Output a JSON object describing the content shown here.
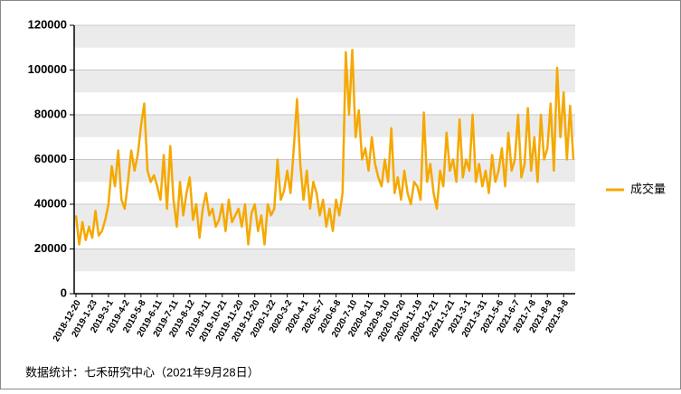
{
  "chart_data": {
    "type": "line",
    "categories": [
      "2018-12-20",
      null,
      null,
      null,
      null,
      "2019-1-23",
      null,
      null,
      null,
      null,
      "2019-3-1",
      null,
      null,
      null,
      null,
      "2019-4-2",
      null,
      null,
      null,
      null,
      "2019-5-8",
      null,
      null,
      null,
      null,
      "2019-6-11",
      null,
      null,
      null,
      null,
      "2019-7-11",
      null,
      null,
      null,
      null,
      "2019-8-12",
      null,
      null,
      null,
      null,
      "2019-9-11",
      null,
      null,
      null,
      null,
      "2019-10-21",
      null,
      null,
      null,
      null,
      "2019-11-20",
      null,
      null,
      null,
      null,
      "2019-12-20",
      null,
      null,
      null,
      null,
      "2020-1-22",
      null,
      null,
      null,
      null,
      "2020-3-2",
      null,
      null,
      null,
      null,
      "2020-4-1",
      null,
      null,
      null,
      null,
      "2020-5-7",
      null,
      null,
      null,
      null,
      "2020-6-8",
      null,
      null,
      null,
      null,
      "2020-7-10",
      null,
      null,
      null,
      null,
      "2020-8-11",
      null,
      null,
      null,
      null,
      "2020-9-10",
      null,
      null,
      null,
      null,
      "2020-10-20",
      null,
      null,
      null,
      null,
      "2020-11-19",
      null,
      null,
      null,
      null,
      "2020-12-21",
      null,
      null,
      null,
      null,
      "2021-1-21",
      null,
      null,
      null,
      null,
      "2021-3-1",
      null,
      null,
      null,
      null,
      "2021-3-31",
      null,
      null,
      null,
      null,
      "2021-5-6",
      null,
      null,
      null,
      null,
      "2021-6-7",
      null,
      null,
      null,
      null,
      "2021-7-8",
      null,
      null,
      null,
      null,
      "2021-8-9",
      null,
      null,
      null,
      null,
      "2021-9-8",
      null,
      null,
      null
    ],
    "series": [
      {
        "name": "成交量",
        "color": "#f5a800",
        "values": [
          35000,
          22000,
          32000,
          24000,
          30000,
          25000,
          37000,
          26000,
          28000,
          33000,
          40000,
          57000,
          48000,
          64000,
          42000,
          38000,
          50000,
          64000,
          55000,
          62000,
          75000,
          85000,
          55000,
          50000,
          53000,
          48000,
          42000,
          62000,
          38000,
          66000,
          42000,
          30000,
          50000,
          35000,
          45000,
          52000,
          33000,
          40000,
          25000,
          38000,
          45000,
          35000,
          38000,
          30000,
          33000,
          40000,
          28000,
          42000,
          32000,
          35000,
          38000,
          30000,
          40000,
          22000,
          36000,
          40000,
          28000,
          35000,
          22000,
          40000,
          35000,
          38000,
          60000,
          42000,
          46000,
          55000,
          45000,
          65000,
          87000,
          58000,
          42000,
          55000,
          38000,
          50000,
          45000,
          35000,
          42000,
          30000,
          38000,
          28000,
          42000,
          35000,
          45000,
          108000,
          80000,
          109000,
          70000,
          82000,
          60000,
          65000,
          55000,
          70000,
          58000,
          52000,
          48000,
          60000,
          50000,
          74000,
          45000,
          52000,
          42000,
          55000,
          45000,
          40000,
          50000,
          48000,
          42000,
          81000,
          50000,
          58000,
          45000,
          38000,
          55000,
          48000,
          72000,
          55000,
          60000,
          50000,
          78000,
          52000,
          60000,
          55000,
          80000,
          50000,
          58000,
          48000,
          55000,
          45000,
          62000,
          50000,
          55000,
          65000,
          48000,
          72000,
          55000,
          60000,
          80000,
          52000,
          58000,
          83000,
          55000,
          70000,
          50000,
          80000,
          60000,
          65000,
          85000,
          55000,
          101000,
          70000,
          90000,
          60000,
          84000,
          60000
        ]
      }
    ],
    "ylim": [
      0,
      120000
    ],
    "yticks": [
      0,
      20000,
      40000,
      60000,
      80000,
      100000,
      120000
    ],
    "grid": true,
    "legend": "right",
    "note": "数据统计：七禾研究中心（2021年9月28日）"
  }
}
